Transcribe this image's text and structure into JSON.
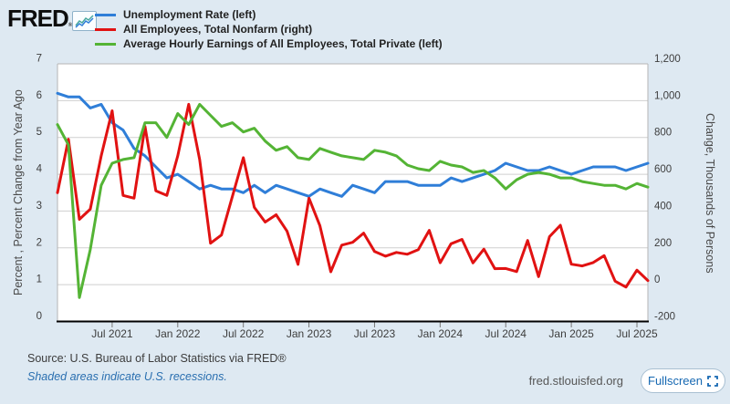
{
  "header": {
    "logo": "FRED",
    "logo_mark": "®"
  },
  "legend": [
    {
      "label": "Unemployment Rate (left)",
      "color": "#2f7ed8"
    },
    {
      "label": "All Employees, Total Nonfarm (right)",
      "color": "#e11212"
    },
    {
      "label": "Average Hourly Earnings of All Employees, Total Private (left)",
      "color": "#54b435"
    }
  ],
  "footer": {
    "source": "Source: U.S. Bureau of Labor Statistics via FRED®",
    "recession_note": "Shaded areas indicate U.S. recessions.",
    "site": "fred.stlouisfed.org",
    "fullscreen_label": "Fullscreen"
  },
  "chart_data": {
    "type": "line",
    "x_monthly_range": "2021-02 to 2025-08",
    "left_axis": {
      "label": "Percent , Percent Change from Year Ago",
      "min": 0,
      "max": 7,
      "ticks": [
        "0",
        "1",
        "2",
        "3",
        "4",
        "5",
        "6",
        "7"
      ]
    },
    "right_axis": {
      "label": "Change, Thousands of Persons",
      "min": -200,
      "max": 1200,
      "ticks": [
        "-200",
        "0",
        "200",
        "400",
        "600",
        "800",
        "1,000",
        "1,200"
      ]
    },
    "x_ticks": [
      {
        "index": 5,
        "label": "Jul 2021"
      },
      {
        "index": 11,
        "label": "Jan 2022"
      },
      {
        "index": 17,
        "label": "Jul 2022"
      },
      {
        "index": 23,
        "label": "Jan 2023"
      },
      {
        "index": 29,
        "label": "Jul 2023"
      },
      {
        "index": 35,
        "label": "Jan 2024"
      },
      {
        "index": 41,
        "label": "Jul 2024"
      },
      {
        "index": 47,
        "label": "Jan 2025"
      },
      {
        "index": 53,
        "label": "Jul 2025"
      }
    ],
    "series": [
      {
        "name": "Unemployment Rate (left)",
        "axis": "left",
        "color": "#2f7ed8",
        "values": [
          6.2,
          6.1,
          6.1,
          5.8,
          5.9,
          5.4,
          5.2,
          4.7,
          4.5,
          4.2,
          3.9,
          4.0,
          3.8,
          3.6,
          3.7,
          3.6,
          3.6,
          3.5,
          3.7,
          3.5,
          3.7,
          3.6,
          3.5,
          3.4,
          3.6,
          3.5,
          3.4,
          3.7,
          3.6,
          3.5,
          3.8,
          3.8,
          3.8,
          3.7,
          3.7,
          3.7,
          3.9,
          3.8,
          3.9,
          4.0,
          4.1,
          4.3,
          4.2,
          4.1,
          4.1,
          4.2,
          4.1,
          4.0,
          4.1,
          4.2,
          4.2,
          4.2,
          4.1,
          4.2,
          4.3
        ]
      },
      {
        "name": "All Employees, Total Nonfarm (right)",
        "axis": "right",
        "color": "#e11212",
        "values": [
          500,
          790,
          355,
          410,
          700,
          945,
          485,
          470,
          860,
          510,
          485,
          700,
          980,
          680,
          225,
          270,
          480,
          690,
          420,
          340,
          380,
          290,
          110,
          470,
          320,
          70,
          215,
          230,
          280,
          180,
          155,
          175,
          165,
          190,
          295,
          119,
          222,
          246,
          118,
          193,
          87,
          88,
          71,
          240,
          44,
          261,
          323,
          111,
          102,
          120,
          158,
          19,
          -13,
          79,
          22
        ]
      },
      {
        "name": "Average Hourly Earnings of All Employees, Total Private (left)",
        "axis": "left",
        "color": "#54b435",
        "values": [
          5.35,
          4.8,
          0.65,
          1.95,
          3.7,
          4.3,
          4.4,
          4.45,
          5.4,
          5.4,
          5.0,
          5.65,
          5.35,
          5.9,
          5.6,
          5.3,
          5.4,
          5.15,
          5.25,
          4.9,
          4.65,
          4.75,
          4.45,
          4.4,
          4.7,
          4.6,
          4.5,
          4.45,
          4.4,
          4.65,
          4.6,
          4.5,
          4.25,
          4.15,
          4.1,
          4.35,
          4.25,
          4.2,
          4.05,
          4.1,
          3.9,
          3.6,
          3.85,
          4.0,
          4.05,
          4.0,
          3.9,
          3.9,
          3.8,
          3.75,
          3.7,
          3.7,
          3.6,
          3.75,
          3.65
        ]
      }
    ]
  }
}
